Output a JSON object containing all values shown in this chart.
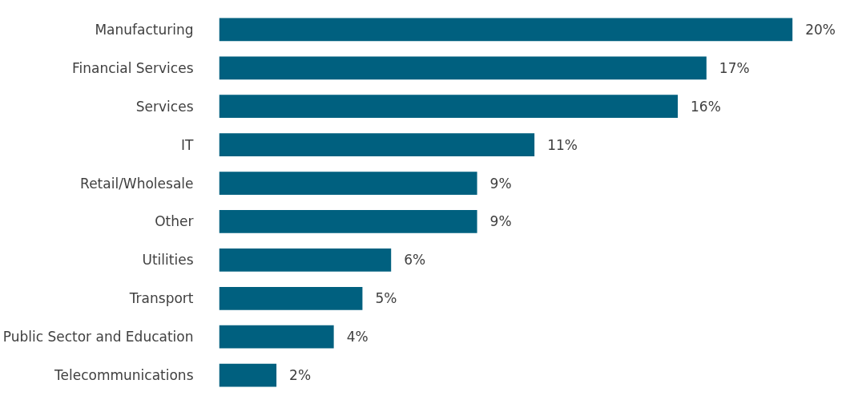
{
  "chart_data": {
    "type": "bar",
    "orientation": "horizontal",
    "categories": [
      "Manufacturing",
      "Financial Services",
      "Services",
      "IT",
      "Retail/Wholesale",
      "Other",
      "Utilities",
      "Transport",
      "Public Sector and Education",
      "Telecommunications"
    ],
    "values": [
      20,
      17,
      16,
      11,
      9,
      9,
      6,
      5,
      4,
      2
    ],
    "value_labels": [
      "20%",
      "17%",
      "16%",
      "11%",
      "9%",
      "9%",
      "6%",
      "5%",
      "4%",
      "2%"
    ],
    "color": "#00607f",
    "grid": false
  }
}
